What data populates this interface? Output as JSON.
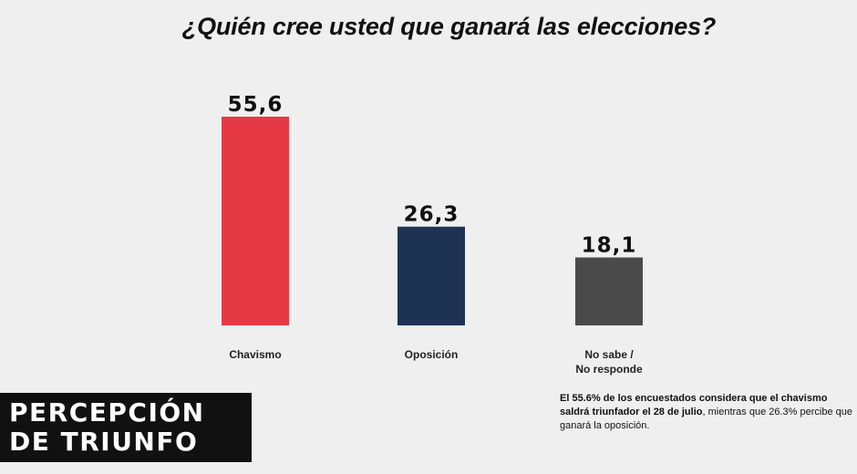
{
  "chart_data": {
    "type": "bar",
    "title": "¿Quién cree usted que ganará las elecciones?",
    "categories": [
      "Chavismo",
      "Oposición",
      "No sabe / No responde"
    ],
    "category_lines": [
      [
        "Chavismo"
      ],
      [
        "Oposición"
      ],
      [
        "No sabe /",
        "No responde"
      ]
    ],
    "values": [
      55.6,
      26.3,
      18.1
    ],
    "value_labels": [
      "55,6",
      "26,3",
      "18,1"
    ],
    "colors": [
      "#e63946",
      "#1e3354",
      "#4a4a4a"
    ],
    "ylim": [
      0,
      55.6
    ],
    "grid": false,
    "legend": "none"
  },
  "badge": {
    "line1": "PERCEPCIÓN",
    "line2": "DE TRIUNFO"
  },
  "note": {
    "bold": "El 55.6% de los encuestados considera que el chavismo saldrá triunfador el 28 de julio",
    "regular": ", mientras que 26.3% percibe que ganará la oposición."
  }
}
